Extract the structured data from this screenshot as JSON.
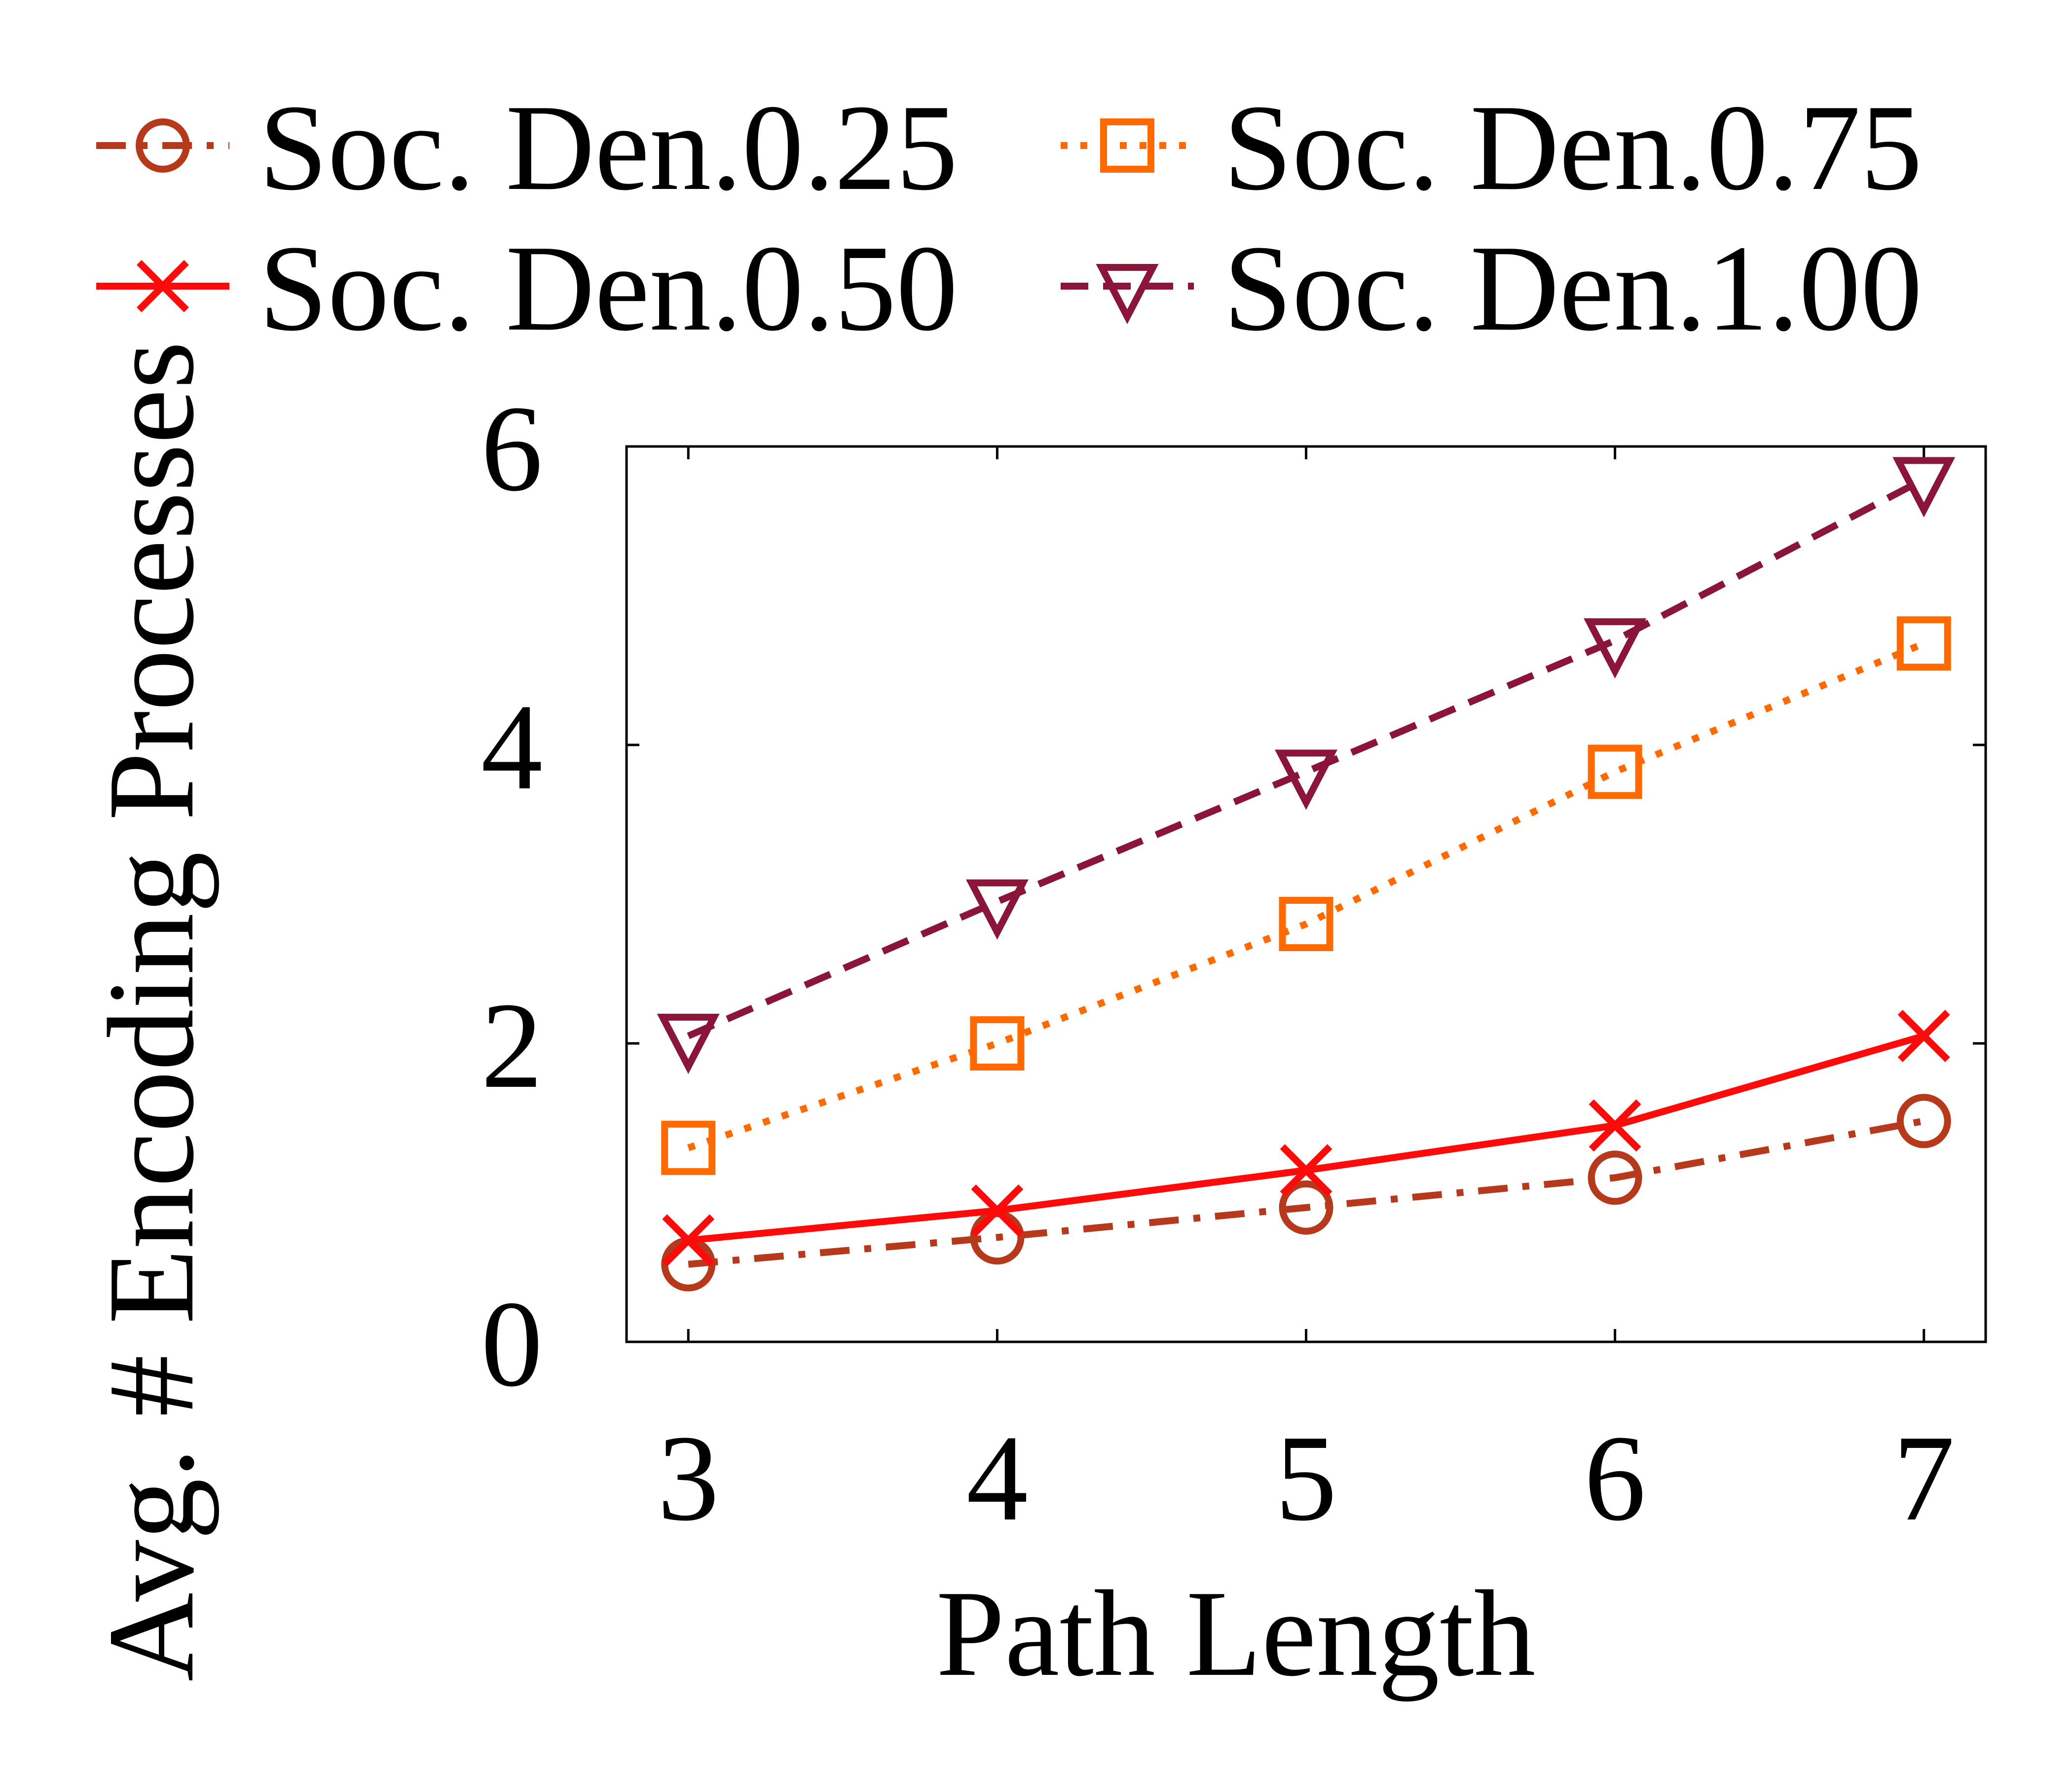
{
  "chart_data": {
    "type": "line",
    "xlabel": "Path Length",
    "ylabel": "Avg. # Encoding Processes",
    "x": [
      3,
      4,
      5,
      6,
      7
    ],
    "xlim": [
      2.8,
      7.2
    ],
    "ylim": [
      0,
      6
    ],
    "xticks": [
      "3",
      "4",
      "5",
      "6",
      "7"
    ],
    "yticks": [
      "0",
      "2",
      "4",
      "6"
    ],
    "grid": false,
    "legend_position": "top",
    "series": [
      {
        "name": "Soc. Den.0.25",
        "values": [
          0.52,
          0.7,
          0.9,
          1.1,
          1.48
        ],
        "color": "#b5391a",
        "marker": "circle",
        "dash": "dashdot"
      },
      {
        "name": "Soc. Den.0.50",
        "values": [
          0.68,
          0.88,
          1.15,
          1.45,
          2.05
        ],
        "color": "#ff0a0a",
        "marker": "x",
        "dash": "solid"
      },
      {
        "name": "Soc. Den.0.75",
        "values": [
          1.3,
          2.0,
          2.8,
          3.82,
          4.68
        ],
        "color": "#ff6a00",
        "marker": "square",
        "dash": "dotted"
      },
      {
        "name": "Soc. Den.1.00",
        "values": [
          2.05,
          2.95,
          3.82,
          4.7,
          5.78
        ],
        "color": "#8a1538",
        "marker": "triangle-down",
        "dash": "dashed"
      }
    ]
  }
}
